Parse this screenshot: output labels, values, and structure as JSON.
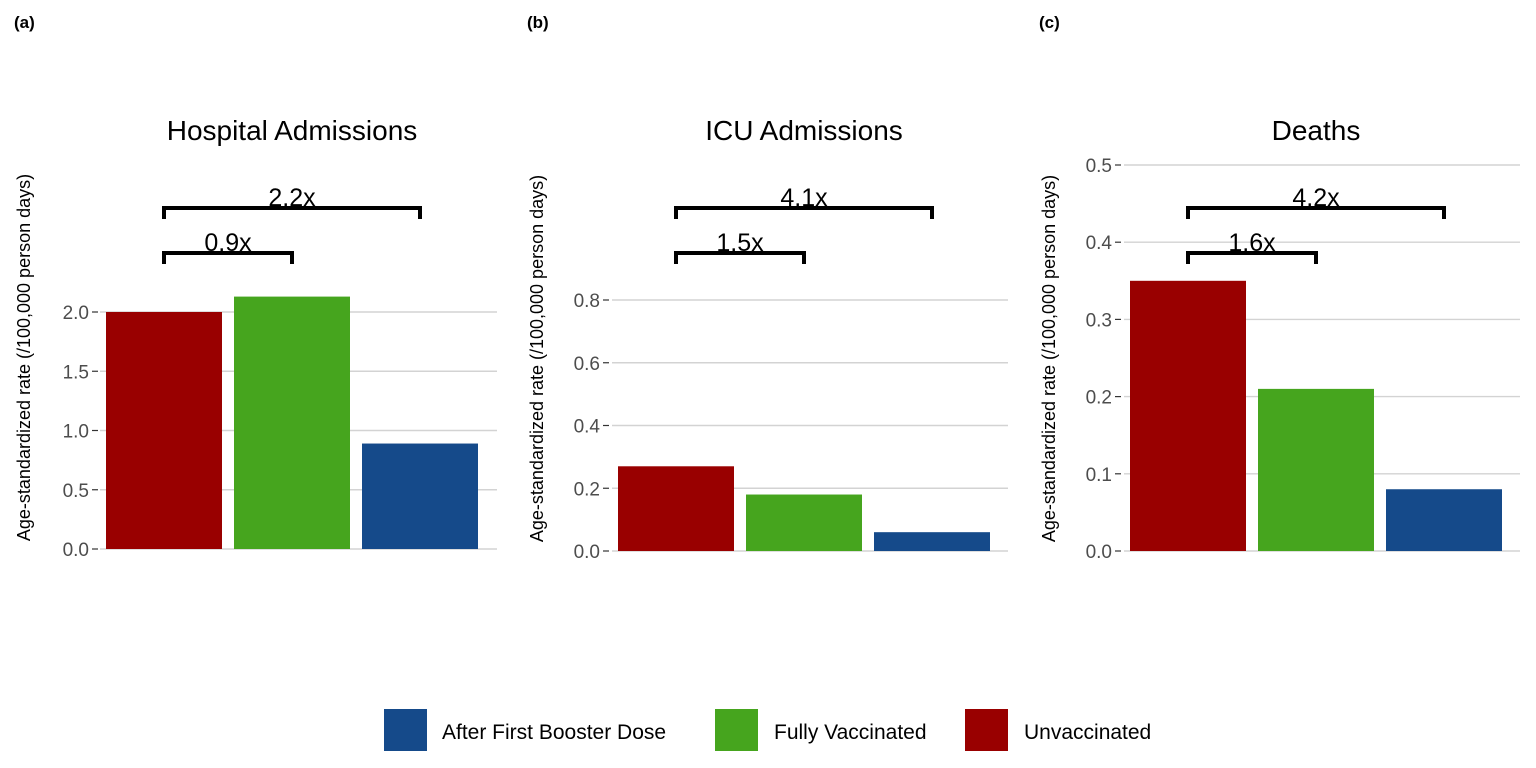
{
  "chart_data": [
    {
      "type": "bar",
      "panel": "(a)",
      "title": "Hospital Admissions",
      "ylabel": "Age-standardized rate (/100,000 person days)",
      "categories": [
        "Unvaccinated",
        "Fully Vaccinated",
        "After First Booster Dose"
      ],
      "values": [
        2.0,
        2.13,
        0.89
      ],
      "yticks": [
        "0.0",
        "0.5",
        "1.0",
        "1.5",
        "2.0"
      ],
      "ylim": [
        0,
        2.0
      ],
      "brackets": [
        {
          "from": "Unvaccinated",
          "to": "Fully Vaccinated",
          "label": "0.9x"
        },
        {
          "from": "Unvaccinated",
          "to": "After First Booster Dose",
          "label": "2.2x"
        }
      ]
    },
    {
      "type": "bar",
      "panel": "(b)",
      "title": "ICU Admissions",
      "ylabel": "Age-standardized rate (/100,000 person days)",
      "categories": [
        "Unvaccinated",
        "Fully Vaccinated",
        "After First Booster Dose"
      ],
      "values": [
        0.27,
        0.18,
        0.06
      ],
      "yticks": [
        "0.0",
        "0.2",
        "0.4",
        "0.6",
        "0.8"
      ],
      "ylim": [
        0,
        0.8
      ],
      "brackets": [
        {
          "from": "Unvaccinated",
          "to": "Fully Vaccinated",
          "label": "1.5x"
        },
        {
          "from": "Unvaccinated",
          "to": "After First Booster Dose",
          "label": "4.1x"
        }
      ]
    },
    {
      "type": "bar",
      "panel": "(c)",
      "title": "Deaths",
      "ylabel": "Age-standardized rate (/100,000 person days)",
      "categories": [
        "Unvaccinated",
        "Fully Vaccinated",
        "After First Booster Dose"
      ],
      "values": [
        0.35,
        0.21,
        0.08
      ],
      "yticks": [
        "0.0",
        "0.1",
        "0.2",
        "0.3",
        "0.4",
        "0.5"
      ],
      "ylim": [
        0,
        0.5
      ],
      "brackets": [
        {
          "from": "Unvaccinated",
          "to": "Fully Vaccinated",
          "label": "1.6x"
        },
        {
          "from": "Unvaccinated",
          "to": "After First Booster Dose",
          "label": "4.2x"
        }
      ]
    }
  ],
  "legend": {
    "position": "bottom",
    "items": [
      {
        "label": "After First Booster Dose",
        "color": "#154a8a"
      },
      {
        "label": "Fully Vaccinated",
        "color": "#46a51e"
      },
      {
        "label": "Unvaccinated",
        "color": "#990000"
      }
    ]
  },
  "colors": {
    "Unvaccinated": "#990000",
    "Fully Vaccinated": "#46a51e",
    "After First Booster Dose": "#154a8a"
  }
}
